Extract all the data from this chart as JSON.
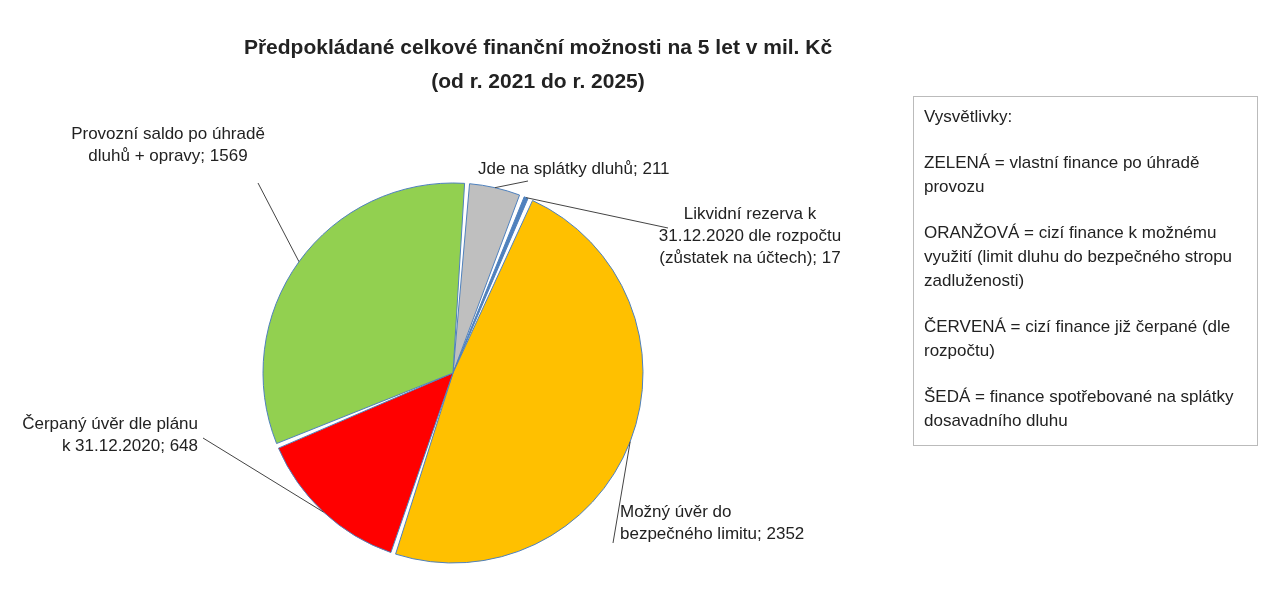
{
  "chart_data": {
    "type": "pie",
    "title": "Předpokládané celkové finanční možnosti na 5 let v mil. Kč",
    "subtitle": "(od r. 2021 do r. 2025)",
    "categories": [
      "Jde na splátky dluhů",
      "Likvidní rezerva k 31.12.2020 dle rozpočtu (zůstatek na účtech)",
      "Možný úvěr do bezpečného limitu",
      "Čerpaný úvěr dle plánu k 31.12.2020",
      "Provozní saldo po úhradě dluhů + opravy"
    ],
    "values": [
      211,
      17,
      2352,
      648,
      1569
    ],
    "colors": [
      "#bfbfbf",
      "#4f81bd",
      "#ffc000",
      "#ff0000",
      "#92d050"
    ],
    "value_labels": [
      "; 211",
      "; 17",
      "; 2352",
      "; 648",
      "; 1569"
    ],
    "annotations": [
      "Vysvětlivky:",
      "ZELENÁ = vlastní finance po úhradě provozu",
      "ORANŽOVÁ = cizí finance k možnému využití (limit dluhu do bezpečného stropu zadluženosti)",
      "ČERVENÁ = cizí finance již čerpané (dle rozpočtu)",
      "ŠEDÁ = finance spotřebované na splátky dosavadního dluhu"
    ]
  }
}
